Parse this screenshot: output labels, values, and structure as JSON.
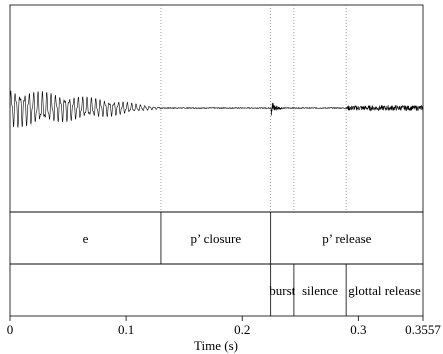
{
  "chart_data": {
    "type": "waveform",
    "xlabel": "Time (s)",
    "xlim": [
      0,
      0.3557
    ],
    "x_ticks": [
      0,
      0.1,
      0.2,
      0.3,
      0.3557
    ],
    "x_tick_labels": [
      "0",
      "0.1",
      "0.2",
      "0.3",
      "0.3557"
    ],
    "waveform": {
      "segments": [
        {
          "start": 0.0,
          "end": 0.13,
          "description": "periodic voicing, large amplitude decaying toward end",
          "peak": 0.95,
          "end_amplitude": 0.1
        },
        {
          "start": 0.13,
          "end": 0.225,
          "description": "near silence",
          "peak": 0.02
        },
        {
          "start": 0.225,
          "end": 0.235,
          "description": "burst transient",
          "peak": 0.45
        },
        {
          "start": 0.235,
          "end": 0.29,
          "description": "silence",
          "peak": 0.02
        },
        {
          "start": 0.29,
          "end": 0.3557,
          "description": "glottal release noise",
          "peak": 0.12
        }
      ]
    },
    "boundaries_dotted": [
      0.13,
      0.2245,
      0.2445,
      0.2895
    ],
    "tiers": [
      {
        "name": "tier1",
        "intervals": [
          {
            "start": 0.0,
            "end": 0.13,
            "label": "e"
          },
          {
            "start": 0.13,
            "end": 0.2245,
            "label": "p’ closure"
          },
          {
            "start": 0.2245,
            "end": 0.3557,
            "label": "p’ release"
          }
        ]
      },
      {
        "name": "tier2",
        "intervals": [
          {
            "start": 0.0,
            "end": 0.2245,
            "label": ""
          },
          {
            "start": 0.2245,
            "end": 0.2445,
            "label": "burst"
          },
          {
            "start": 0.2445,
            "end": 0.2895,
            "label": "silence"
          },
          {
            "start": 0.2895,
            "end": 0.3557,
            "label": "glottal release"
          }
        ]
      }
    ]
  }
}
